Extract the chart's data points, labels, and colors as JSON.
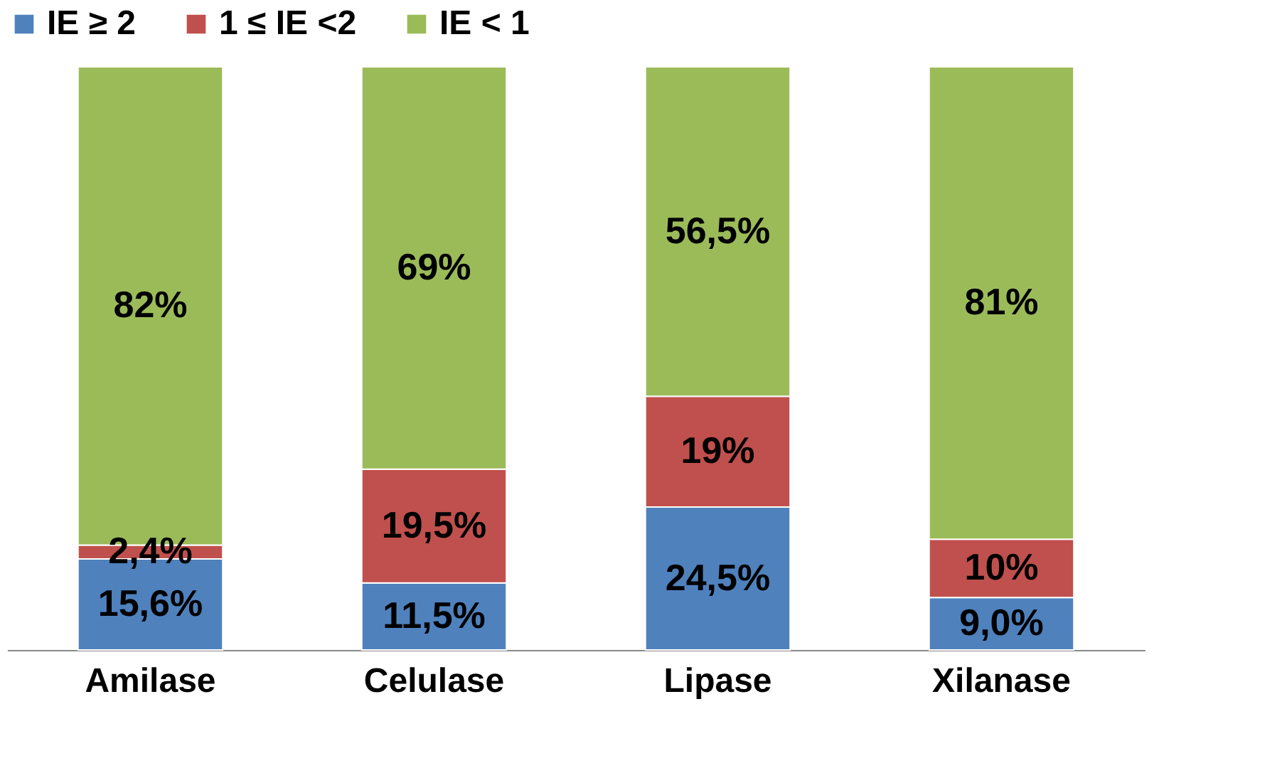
{
  "chart_data": {
    "type": "bar",
    "stacked": true,
    "categories": [
      "Amilase",
      "Celulase",
      "Lipase",
      "Xilanase"
    ],
    "series": [
      {
        "name": "IE ≥ 2",
        "color": "#4f81bd",
        "values": [
          15.6,
          11.5,
          24.5,
          9.0
        ],
        "value_labels": [
          "15,6%",
          "11,5%",
          "24,5%",
          "9,0%"
        ]
      },
      {
        "name": "1 ≤ IE <2",
        "color": "#c0504d",
        "values": [
          2.4,
          19.5,
          19,
          10
        ],
        "value_labels": [
          "2,4%",
          "19,5%",
          "19%",
          "10%"
        ]
      },
      {
        "name": "IE < 1",
        "color": "#9bbb59",
        "values": [
          82,
          69,
          56.5,
          81
        ],
        "value_labels": [
          "82%",
          "69%",
          "56,5%",
          "81%"
        ]
      }
    ],
    "ylim": [
      0,
      100
    ],
    "tick_labels": "x",
    "legend": "top",
    "grid": false
  }
}
